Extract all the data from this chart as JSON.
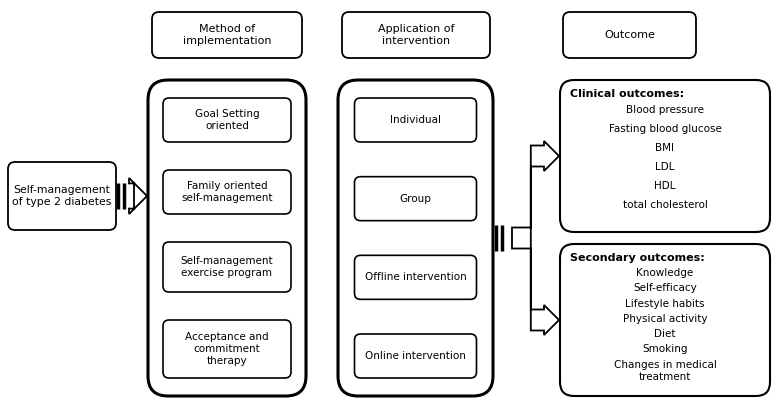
{
  "bg_color": "#ffffff",
  "border_color": "#000000",
  "text_color": "#000000",
  "fig_width": 7.84,
  "fig_height": 4.15,
  "dpi": 100,
  "col1_header": "Method of\nimplementation",
  "col2_header": "Application of\nintervention",
  "col3_header": "Outcome",
  "col1_items": [
    "Goal Setting\noriented",
    "Family oriented\nself-management",
    "Self-management\nexercise program",
    "Acceptance and\ncommitment\ntherapy"
  ],
  "col2_items": [
    "Individual",
    "Group",
    "Offline intervention",
    "Online intervention"
  ],
  "clinical_title": "Clinical outcomes:",
  "clinical_items": [
    "Blood pressure",
    "Fasting blood glucose",
    "BMI",
    "LDL",
    "HDL",
    "total cholesterol"
  ],
  "secondary_title": "Secondary outcomes:",
  "secondary_items": [
    "Knowledge",
    "Self-efficacy",
    "Lifestyle habits",
    "Physical activity",
    "Diet",
    "Smoking",
    "Changes in medical\ntreatment"
  ],
  "left_box_text": "Self-management\nof type 2 diabetes"
}
